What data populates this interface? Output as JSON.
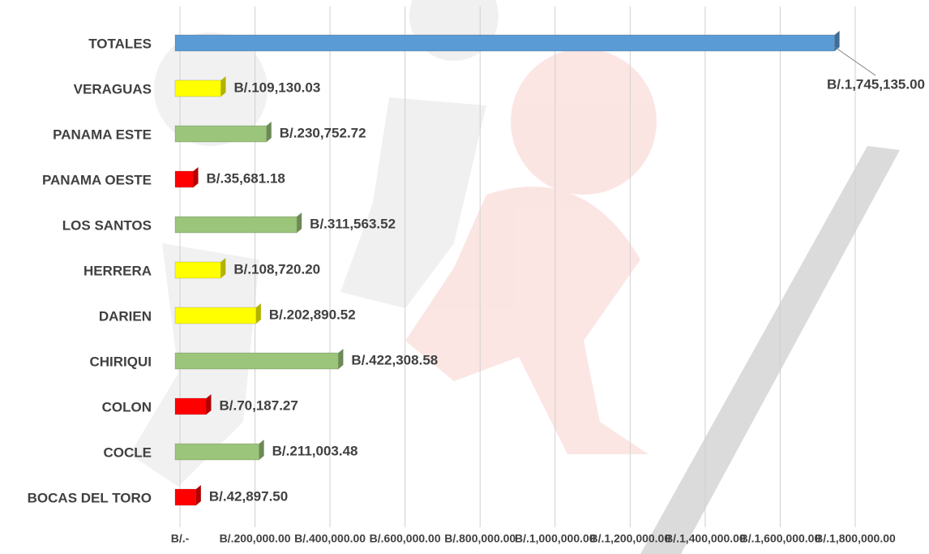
{
  "chart_data": {
    "type": "hbar",
    "categories": [
      "TOTALES",
      "VERAGUAS",
      "PANAMA ESTE",
      "PANAMA OESTE",
      "LOS SANTOS",
      "HERRERA",
      "DARIEN",
      "CHIRIQUI",
      "COLON",
      "COCLE",
      "BOCAS DEL TORO"
    ],
    "values": [
      1745135.0,
      109130.03,
      230752.72,
      35681.18,
      311563.52,
      108720.2,
      202890.52,
      422308.58,
      70187.27,
      211003.48,
      42897.5
    ],
    "value_labels": [
      "B/.1,745,135.00",
      "B/.109,130.03",
      "B/.230,752.72",
      "B/.35,681.18",
      "B/.311,563.52",
      "B/.108,720.20",
      "B/.202,890.52",
      "B/.422,308.58",
      "B/.70,187.27",
      "B/.211,003.48",
      "B/.42,897.50"
    ],
    "colors": [
      "#5b9bd5",
      "#ffff00",
      "#9bc57a",
      "#ff0000",
      "#9bc57a",
      "#ffff00",
      "#ffff00",
      "#9bc57a",
      "#ff0000",
      "#9bc57a",
      "#ff0000"
    ],
    "xlim": [
      0,
      1800000
    ],
    "xticks": [
      {
        "value": 0,
        "label": "B/.-"
      },
      {
        "value": 200000,
        "label": "B/.200,000.00"
      },
      {
        "value": 400000,
        "label": "B/.400,000.00"
      },
      {
        "value": 600000,
        "label": "B/.600,000.00"
      },
      {
        "value": 800000,
        "label": "B/.800,000.00"
      },
      {
        "value": 1000000,
        "label": "B/.1,000,000.00"
      },
      {
        "value": 1200000,
        "label": "B/.1,200,000.00"
      },
      {
        "value": 1400000,
        "label": "B/.1,400,000.00"
      },
      {
        "value": 1600000,
        "label": "B/.1,600,000.00"
      },
      {
        "value": 1800000,
        "label": "B/.1,800,000.00"
      }
    ],
    "grid": true
  }
}
